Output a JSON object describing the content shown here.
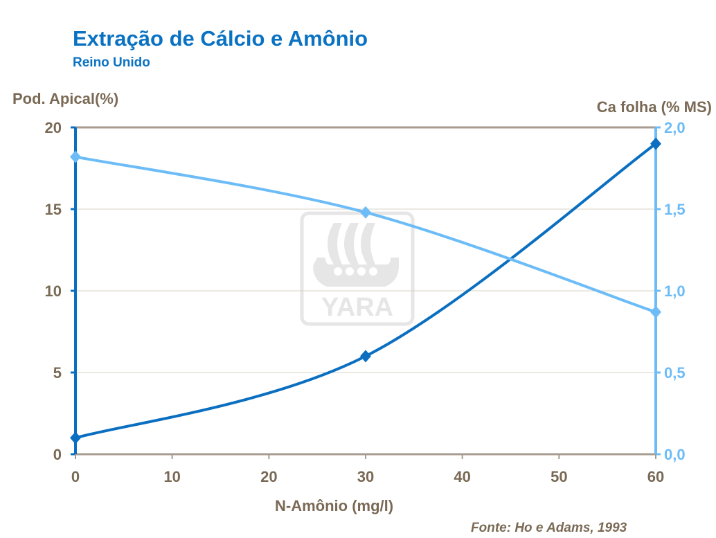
{
  "chart_data": {
    "type": "line",
    "title": "Extração de Cálcio e Amônio",
    "subtitle": "Reino Unido",
    "xlabel": "N-Amônio (mg/l)",
    "ylabel_left": "Pod. Apical(%)",
    "ylabel_right": "Ca folha (% MS)",
    "source": "Fonte: Ho e Adams, 1993",
    "xlim": [
      0,
      60
    ],
    "ylim_left": [
      0,
      20
    ],
    "ylim_right": [
      0,
      2.0
    ],
    "x_ticks": [
      "0",
      "10",
      "20",
      "30",
      "40",
      "50",
      "60"
    ],
    "y_ticks_left": [
      "0",
      "5",
      "10",
      "15",
      "20"
    ],
    "y_ticks_right": [
      "0,0",
      "0,5",
      "1,0",
      "1,5",
      "2,0"
    ],
    "grid": true,
    "series": [
      {
        "axis": "left",
        "color": "#0a6fc0",
        "marker": "diamond",
        "x": [
          0,
          30,
          60
        ],
        "y": [
          1,
          6,
          19
        ]
      },
      {
        "axis": "right",
        "color": "#6cbcf7",
        "marker": "diamond",
        "x": [
          0,
          30,
          60
        ],
        "y": [
          1.82,
          1.48,
          0.87
        ]
      }
    ],
    "watermark": "YARA"
  }
}
